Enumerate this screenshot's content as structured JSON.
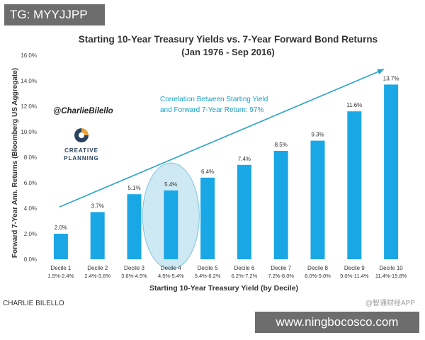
{
  "watermark_top": "TG: MYYJJPP",
  "watermark_bottom": "www.ningbocosco.com",
  "source_label": "CHARLIE BILELLO",
  "app_watermark": "@智通财经APP",
  "handle": "@CharlieBilello",
  "logo": {
    "line1": "CREATIVE",
    "line2": "PLANNING"
  },
  "colors": {
    "bar": "#1aa7e6",
    "trend": "#27a3c6",
    "highlight": "#a6d7ea",
    "annotation": "#1aa1c4",
    "axis_text": "#444444"
  },
  "chart_data": {
    "type": "bar",
    "title": "Starting 10-Year Treasury Yields vs. 7-Year Forward Bond Returns",
    "subtitle": "(Jan 1976 - Sep 2016)",
    "xlabel": "Starting 10-Year Treasury Yield (by Decile)",
    "ylabel": "Forward 7-Year Ann. Returns (Bloomberg US Aggregate)",
    "ylim": [
      0,
      16
    ],
    "yticks": [
      "0.0%",
      "2.0%",
      "4.0%",
      "6.0%",
      "8.0%",
      "10.0%",
      "12.0%",
      "14.0%",
      "16.0%"
    ],
    "categories": [
      "Decile 1",
      "Decile 2",
      "Decile 3",
      "Decile 4",
      "Decile 5",
      "Decile 6",
      "Decile 7",
      "Decile 8",
      "Decile 9",
      "Decile 10"
    ],
    "ranges": [
      "1.5%-2.4%",
      "2.4%-3.6%",
      "3.6%-4.5%",
      "4.5%-5.4%",
      "5.4%-6.2%",
      "6.2%-7.2%",
      "7.2%-8.0%",
      "8.0%-9.0%",
      "9.0%-11.4%",
      "11.4%-15.8%"
    ],
    "values": [
      2.0,
      3.7,
      5.1,
      5.4,
      6.4,
      7.4,
      8.5,
      9.3,
      11.6,
      13.7
    ],
    "labels": [
      "2.0%",
      "3.7%",
      "5.1%",
      "5.4%",
      "6.4%",
      "7.4%",
      "8.5%",
      "9.3%",
      "11.6%",
      "13.7%"
    ],
    "highlighted_category": "Decile 4",
    "trend_line": {
      "start_y": 4.1,
      "end_y": 14.9
    },
    "annotation": [
      "Correlation Between Starting Yield",
      "and Forward 7-Year Return: 97%"
    ]
  }
}
